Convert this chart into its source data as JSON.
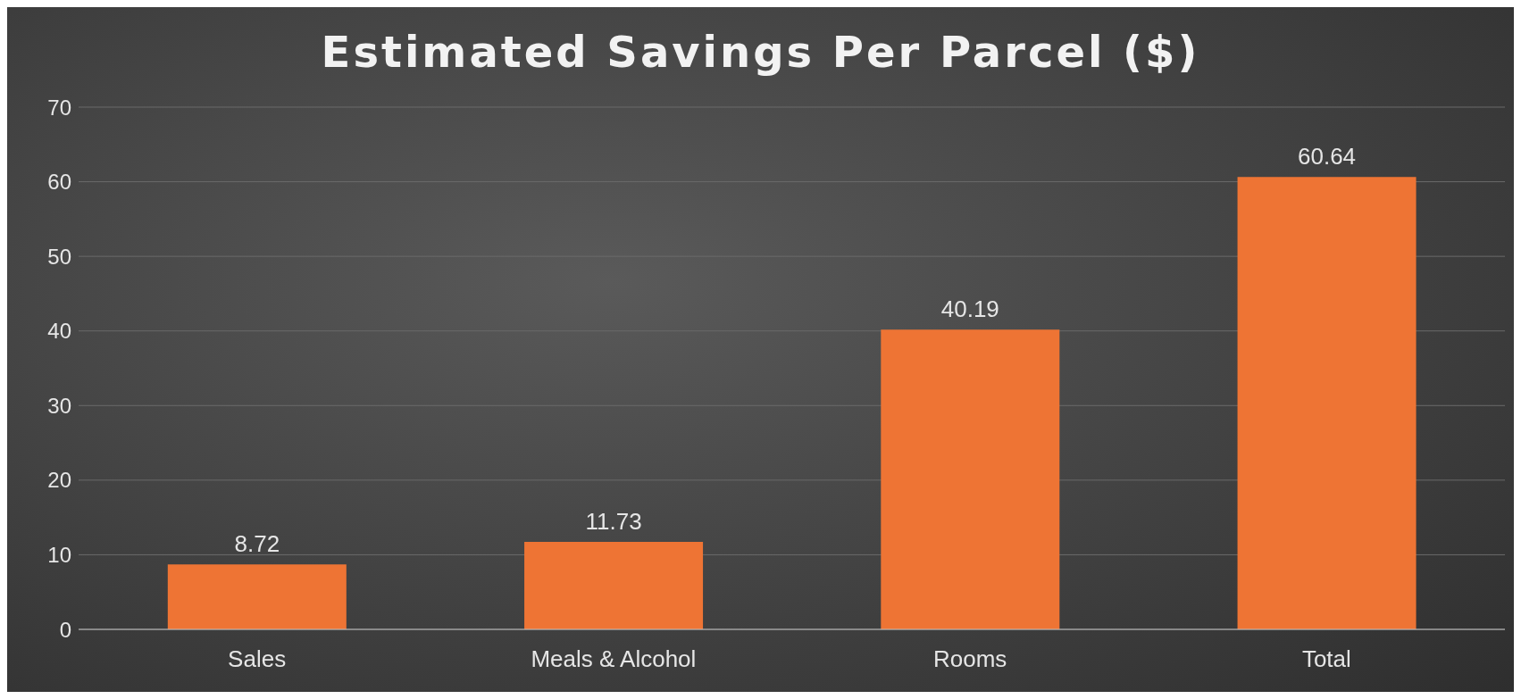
{
  "chart_data": {
    "type": "bar",
    "title": "Estimated Savings Per Parcel ($)",
    "categories": [
      "Sales",
      "Meals & Alcohol",
      "Rooms",
      "Total"
    ],
    "values": [
      8.72,
      11.73,
      40.19,
      60.64
    ],
    "color": "#ee7434",
    "ylim": [
      0,
      70
    ],
    "yticks": [
      0,
      10,
      20,
      30,
      40,
      50,
      60,
      70
    ],
    "grid": "y",
    "data_labels": true
  }
}
